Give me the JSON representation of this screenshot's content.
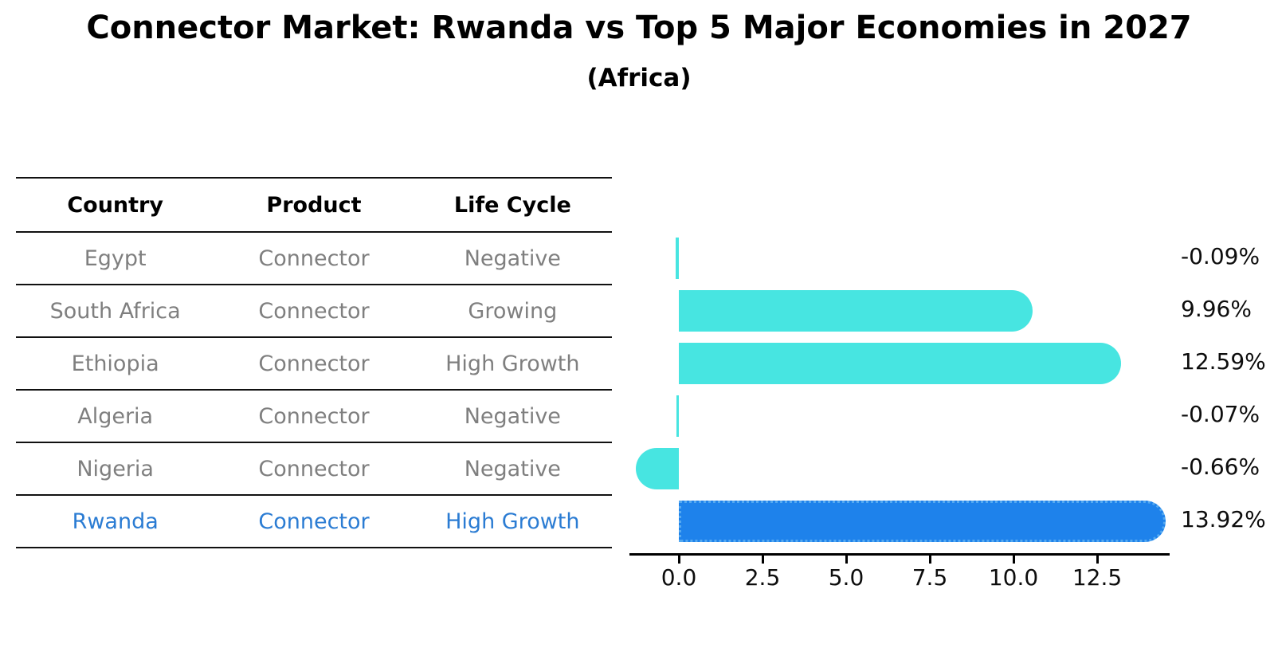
{
  "title": "Connector Market: Rwanda vs Top 5 Major Economies in 2027",
  "subtitle": "(Africa)",
  "table": {
    "headers": [
      "Country",
      "Product",
      "Life Cycle"
    ],
    "rows": [
      {
        "country": "Egypt",
        "product": "Connector",
        "life_cycle": "Negative",
        "highlight": false
      },
      {
        "country": "South Africa",
        "product": "Connector",
        "life_cycle": "Growing",
        "highlight": false
      },
      {
        "country": "Ethiopia",
        "product": "Connector",
        "life_cycle": "High Growth",
        "highlight": false
      },
      {
        "country": "Algeria",
        "product": "Connector",
        "life_cycle": "Negative",
        "highlight": false
      },
      {
        "country": "Nigeria",
        "product": "Connector",
        "life_cycle": "Negative",
        "highlight": false
      },
      {
        "country": "Rwanda",
        "product": "Connector",
        "life_cycle": "High Growth",
        "highlight": true
      }
    ]
  },
  "chart_data": {
    "type": "bar",
    "orientation": "horizontal",
    "title": "Connector Market: Rwanda vs Top 5 Major Economies in 2027",
    "subtitle": "(Africa)",
    "categories": [
      "Egypt",
      "South Africa",
      "Ethiopia",
      "Algeria",
      "Nigeria",
      "Rwanda"
    ],
    "values": [
      -0.09,
      9.96,
      12.59,
      -0.07,
      -0.66,
      13.92
    ],
    "value_labels": [
      "-0.09%",
      "9.96%",
      "12.59%",
      "-0.07%",
      "-0.66%",
      "13.92%"
    ],
    "highlight_index": 5,
    "x_ticks": [
      0.0,
      2.5,
      5.0,
      7.5,
      10.0,
      12.5
    ],
    "x_tick_labels": [
      "0.0",
      "2.5",
      "5.0",
      "7.5",
      "10.0",
      "12.5"
    ],
    "xlim": [
      -1.5,
      14.7
    ],
    "grid": false,
    "legend": "none",
    "bar_color": "#47e5e1",
    "highlight_bar_color": "#1e82eb",
    "highlight_text_color": "#2b7cd3",
    "value_label_unit": "%"
  },
  "colors": {
    "background": "#ffffff",
    "bar_cyan": "#47e5e1",
    "bar_blue": "#1e82eb",
    "bar_blue_dotted_edge": "#55a9f0",
    "table_text_gray": "#7f7f7f",
    "table_highlight_blue": "#2b7cd3",
    "line_black": "#111111"
  }
}
